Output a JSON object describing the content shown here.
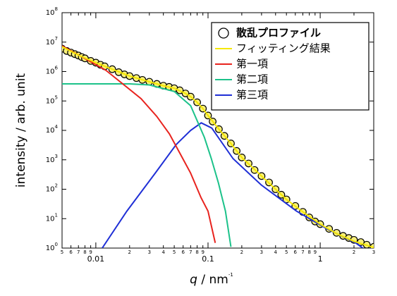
{
  "chart_data": {
    "type": "line",
    "xscale": "log",
    "yscale": "log",
    "grid": false,
    "legend": "upper right",
    "y_label": "intensity / arb. unit",
    "x_label": {
      "symbol": "q",
      "text": " / nm",
      "exponent": "-1"
    },
    "xlim": [
      0.005,
      3
    ],
    "ylim": [
      1,
      100000000
    ],
    "xticks": [
      {
        "value": 0.005,
        "label": "5"
      },
      {
        "value": 0.006,
        "label": "6"
      },
      {
        "value": 0.007,
        "label": "7"
      },
      {
        "value": 0.008,
        "label": "8"
      },
      {
        "value": 0.009,
        "label": "9"
      },
      0.01,
      {
        "value": 0.02,
        "label": "2"
      },
      {
        "value": 0.03,
        "label": "3"
      },
      {
        "value": 0.04,
        "label": "4"
      },
      {
        "value": 0.05,
        "label": "5"
      },
      {
        "value": 0.06,
        "label": "6"
      },
      {
        "value": 0.07,
        "label": "7"
      },
      {
        "value": 0.08,
        "label": "8"
      },
      {
        "value": 0.09,
        "label": "9"
      },
      0.1,
      {
        "value": 0.2,
        "label": "2"
      },
      {
        "value": 0.3,
        "label": "3"
      },
      {
        "value": 0.4,
        "label": "4"
      },
      {
        "value": 0.5,
        "label": "5"
      },
      {
        "value": 0.6,
        "label": "6"
      },
      {
        "value": 0.7,
        "label": "7"
      },
      {
        "value": 0.8,
        "label": "8"
      },
      {
        "value": 0.9,
        "label": "9"
      },
      1,
      {
        "value": 2,
        "label": "2"
      },
      {
        "value": 3,
        "label": "3"
      }
    ],
    "yticks": [
      {
        "value": 1,
        "label": "10",
        "exponent": "0"
      },
      {
        "value": 10,
        "label": "10",
        "exponent": "1"
      },
      {
        "value": 100,
        "label": "10",
        "exponent": "2"
      },
      {
        "value": 1000,
        "label": "10",
        "exponent": "3"
      },
      {
        "value": 10000,
        "label": "10",
        "exponent": "4"
      },
      {
        "value": 100000,
        "label": "10",
        "exponent": "5"
      },
      {
        "value": 1000000,
        "label": "10",
        "exponent": "6"
      },
      {
        "value": 10000000,
        "label": "10",
        "exponent": "7"
      },
      {
        "value": 100000000,
        "label": "10",
        "exponent": "8"
      }
    ],
    "series": [
      {
        "name": "散乱プロファイル",
        "type": "scatter",
        "color": "#f8ef7a",
        "edgecolor": "#000000",
        "x": [
          0.005,
          0.0055,
          0.006,
          0.0065,
          0.007,
          0.0075,
          0.008,
          0.009,
          0.01,
          0.011,
          0.012,
          0.014,
          0.016,
          0.018,
          0.02,
          0.023,
          0.026,
          0.03,
          0.035,
          0.04,
          0.045,
          0.05,
          0.056,
          0.063,
          0.07,
          0.08,
          0.09,
          0.1,
          0.11,
          0.125,
          0.14,
          0.16,
          0.18,
          0.2,
          0.23,
          0.26,
          0.3,
          0.35,
          0.4,
          0.45,
          0.5,
          0.6,
          0.7,
          0.8,
          0.9,
          1,
          1.2,
          1.4,
          1.6,
          1.8,
          2,
          2.3,
          2.6,
          3
        ],
        "values": [
          6000000,
          5000000,
          4400000,
          3900000,
          3500000,
          3100000,
          2800000,
          2300000,
          2000000,
          1700000,
          1500000,
          1200000,
          950000,
          800000,
          700000,
          600000,
          520000,
          450000,
          380000,
          330000,
          300000,
          270000,
          230000,
          180000,
          140000,
          90000,
          55000,
          32000,
          20000,
          11000,
          6500,
          3600,
          2000,
          1200,
          750,
          450,
          280,
          170,
          100,
          65,
          45,
          27,
          17,
          11,
          8,
          6.5,
          4.5,
          3.3,
          2.6,
          2.2,
          1.9,
          1.6,
          1.3,
          1.1
        ]
      },
      {
        "name": "フィッティング結果",
        "type": "line",
        "color": "#f5e800",
        "x": [
          0.005,
          0.007,
          0.01,
          0.014,
          0.02,
          0.03,
          0.04,
          0.05,
          0.063,
          0.07,
          0.08,
          0.09,
          0.1,
          0.125,
          0.16,
          0.2,
          0.3,
          0.4,
          0.5,
          0.7,
          1,
          1.4,
          2,
          3
        ],
        "values": [
          7000000,
          3600000,
          2000000,
          1200000,
          700000,
          450000,
          330000,
          270000,
          180000,
          140000,
          90000,
          55000,
          32000,
          11000,
          3600,
          1200,
          280,
          100,
          45,
          17,
          6.5,
          3.1,
          1.7,
          1.05
        ]
      },
      {
        "name": "第一項",
        "type": "line",
        "color": "#e8231e",
        "x": [
          0.005,
          0.0123,
          0.0253,
          0.0349,
          0.0453,
          0.0698,
          0.0866,
          0.1,
          0.116
        ],
        "values": [
          7500000,
          1100000,
          120000,
          30000,
          7600,
          360,
          52,
          18,
          1.5
        ]
      },
      {
        "name": "第二項",
        "type": "line",
        "color": "#1cc28a",
        "x": [
          0.005,
          0.02,
          0.03,
          0.05,
          0.07,
          0.0928,
          0.107,
          0.124,
          0.143,
          0.16
        ],
        "values": [
          380000,
          380000,
          350000,
          210000,
          69000,
          5800,
          1100,
          160,
          18,
          1.1
        ]
      },
      {
        "name": "第三項",
        "type": "line",
        "color": "#1f2fd6",
        "x": [
          0.0114,
          0.0189,
          0.034,
          0.052,
          0.07,
          0.087,
          0.108,
          0.167,
          0.298,
          0.615,
          1.16,
          2.07,
          2.4
        ],
        "values": [
          1,
          18,
          360,
          3300,
          10000,
          18000,
          12000,
          1100,
          140,
          18,
          4.4,
          1.5,
          1
        ]
      }
    ]
  }
}
